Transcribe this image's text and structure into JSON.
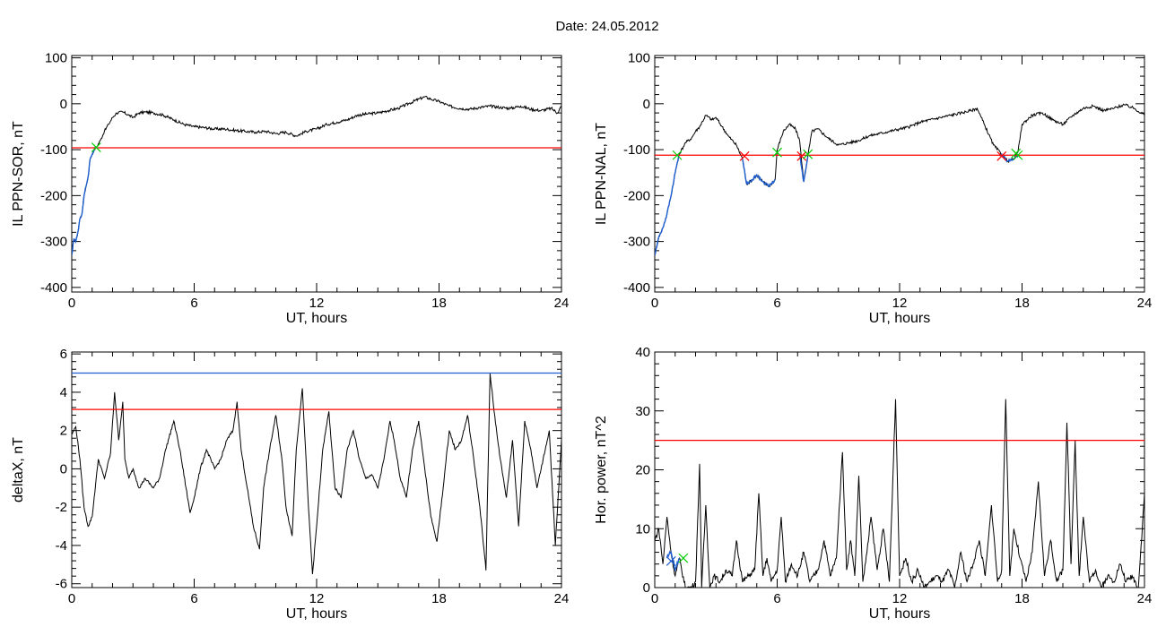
{
  "figure": {
    "title": "Date:  24.05.2012"
  },
  "chart_data": [
    {
      "type": "line",
      "xlabel": "UT, hours",
      "ylabel": "IL PPN-SOR, nT",
      "xlim": [
        0,
        24
      ],
      "ylim": [
        -410,
        105
      ],
      "xticks": [
        0,
        6,
        12,
        18,
        24
      ],
      "yticks": [
        -400,
        -300,
        -200,
        -100,
        0,
        100
      ],
      "grid": false,
      "series": [
        {
          "color": "#000000",
          "x": [
            0,
            0.1,
            0.2,
            0.3,
            0.4,
            0.5,
            0.6,
            0.7,
            0.8,
            0.9,
            1.0,
            1.1,
            1.2,
            1.4,
            1.6,
            1.8,
            2.0,
            2.2,
            2.5,
            2.8,
            3.0,
            3.3,
            3.6,
            4.0,
            4.5,
            5.0,
            5.5,
            6.0,
            6.5,
            7.0,
            7.5,
            8.0,
            8.5,
            9.0,
            9.5,
            10.0,
            10.5,
            11.0,
            11.5,
            12.0,
            12.5,
            13.0,
            13.5,
            14.0,
            14.5,
            15.0,
            15.5,
            16.0,
            16.5,
            17.0,
            17.3,
            17.6,
            18.0,
            18.5,
            19.0,
            19.5,
            20.0,
            20.5,
            21.0,
            21.5,
            22.0,
            22.5,
            23.0,
            23.5,
            23.8,
            24.0
          ],
          "y": [
            -330,
            -295,
            -300,
            -280,
            -250,
            -240,
            -200,
            -180,
            -160,
            -120,
            -110,
            -100,
            -95,
            -80,
            -60,
            -45,
            -30,
            -20,
            -18,
            -25,
            -30,
            -20,
            -18,
            -20,
            -25,
            -35,
            -45,
            -50,
            -52,
            -55,
            -55,
            -58,
            -60,
            -62,
            -60,
            -65,
            -62,
            -70,
            -60,
            -55,
            -45,
            -40,
            -35,
            -25,
            -22,
            -20,
            -15,
            -10,
            0,
            10,
            15,
            10,
            5,
            -5,
            -10,
            -12,
            -8,
            -5,
            -8,
            -10,
            -5,
            -12,
            -15,
            -10,
            -20,
            -5
          ]
        },
        {
          "color": "#1f5fd0",
          "x": [
            0,
            0.1,
            0.2,
            0.3,
            0.4,
            0.5,
            0.6,
            0.7,
            0.8,
            0.9,
            1.0,
            1.1,
            1.2
          ],
          "y": [
            -330,
            -295,
            -300,
            -280,
            -250,
            -240,
            -200,
            -180,
            -160,
            -120,
            -110,
            -100,
            -95
          ]
        }
      ],
      "hlines": [
        {
          "y": -96,
          "color": "#ff0000"
        }
      ],
      "markers": [
        {
          "x": 1.2,
          "y": -95,
          "color": "#00cc00",
          "symbol": "x"
        }
      ]
    },
    {
      "type": "line",
      "xlabel": "UT, hours",
      "ylabel": "IL PPN-NAL, nT",
      "xlim": [
        0,
        24
      ],
      "ylim": [
        -410,
        105
      ],
      "xticks": [
        0,
        6,
        12,
        18,
        24
      ],
      "yticks": [
        -400,
        -300,
        -200,
        -100,
        0,
        100
      ],
      "grid": false,
      "series": [
        {
          "color": "#000000",
          "x": [
            0,
            0.2,
            0.4,
            0.6,
            0.8,
            1.0,
            1.2,
            1.5,
            1.8,
            2.0,
            2.2,
            2.5,
            2.8,
            3.0,
            3.3,
            3.6,
            4.0,
            4.3,
            4.5,
            4.8,
            5.0,
            5.3,
            5.6,
            5.9,
            6.0,
            6.3,
            6.6,
            6.9,
            7.1,
            7.3,
            7.5,
            7.7,
            8.0,
            8.5,
            9.0,
            9.5,
            10.0,
            10.5,
            11.0,
            11.5,
            12.0,
            12.5,
            13.0,
            13.5,
            14.0,
            14.5,
            15.0,
            15.5,
            15.8,
            16.2,
            16.6,
            17.0,
            17.3,
            17.6,
            17.8,
            18.0,
            18.5,
            19.0,
            19.5,
            20.0,
            20.5,
            21.0,
            21.5,
            22.0,
            22.5,
            23.0,
            23.5,
            24.0
          ],
          "y": [
            -330,
            -290,
            -270,
            -240,
            -200,
            -150,
            -110,
            -85,
            -75,
            -60,
            -50,
            -25,
            -35,
            -30,
            -50,
            -70,
            -90,
            -120,
            -175,
            -165,
            -155,
            -170,
            -180,
            -165,
            -100,
            -60,
            -45,
            -55,
            -80,
            -170,
            -115,
            -60,
            -55,
            -75,
            -90,
            -85,
            -80,
            -70,
            -65,
            -60,
            -55,
            -50,
            -40,
            -35,
            -30,
            -25,
            -20,
            -15,
            -10,
            -50,
            -90,
            -110,
            -125,
            -120,
            -105,
            -45,
            -25,
            -20,
            -35,
            -45,
            -25,
            -10,
            -5,
            -15,
            -10,
            -2,
            -10,
            -25
          ]
        },
        {
          "color": "#1f5fd0",
          "x": [
            0,
            0.2,
            0.4,
            0.6,
            0.8,
            1.0,
            1.2
          ],
          "y": [
            -330,
            -290,
            -270,
            -240,
            -200,
            -150,
            -110
          ]
        },
        {
          "color": "#1f5fd0",
          "x": [
            4.3,
            4.5,
            4.8,
            5.0,
            5.3,
            5.6,
            5.9
          ],
          "y": [
            -120,
            -175,
            -165,
            -155,
            -170,
            -180,
            -165
          ]
        },
        {
          "color": "#1f5fd0",
          "x": [
            7.1,
            7.3,
            7.5
          ],
          "y": [
            -110,
            -170,
            -115
          ]
        },
        {
          "color": "#1f5fd0",
          "x": [
            16.9,
            17.0,
            17.3,
            17.6,
            17.8
          ],
          "y": [
            -112,
            -110,
            -125,
            -120,
            -112
          ]
        }
      ],
      "hlines": [
        {
          "y": -112,
          "color": "#ff0000"
        }
      ],
      "markers": [
        {
          "x": 1.1,
          "y": -112,
          "color": "#00cc00",
          "symbol": "x"
        },
        {
          "x": 4.4,
          "y": -114,
          "color": "#ff0000",
          "symbol": "x"
        },
        {
          "x": 6.0,
          "y": -106,
          "color": "#00cc00",
          "symbol": "x"
        },
        {
          "x": 7.2,
          "y": -114,
          "color": "#ff0000",
          "symbol": "x"
        },
        {
          "x": 7.5,
          "y": -110,
          "color": "#00cc00",
          "symbol": "x"
        },
        {
          "x": 17.0,
          "y": -114,
          "color": "#ff0000",
          "symbol": "x"
        },
        {
          "x": 17.7,
          "y": -108,
          "color": "#00cc00",
          "symbol": "x"
        },
        {
          "x": 17.8,
          "y": -112,
          "color": "#00cc00",
          "symbol": "x"
        }
      ]
    },
    {
      "type": "line",
      "xlabel": "UT, hours",
      "ylabel": "deltaX, nT",
      "xlim": [
        0,
        24
      ],
      "ylim": [
        -6.2,
        6.1
      ],
      "xticks": [
        0,
        6,
        12,
        18,
        24
      ],
      "yticks": [
        -6,
        -4,
        -2,
        0,
        2,
        4,
        6
      ],
      "grid": false,
      "series": [
        {
          "color": "#000000",
          "x": [
            0,
            0.2,
            0.4,
            0.6,
            0.8,
            1.0,
            1.3,
            1.6,
            1.9,
            2.1,
            2.3,
            2.5,
            2.6,
            2.8,
            3.0,
            3.3,
            3.6,
            4.0,
            4.3,
            4.6,
            5.0,
            5.3,
            5.6,
            5.8,
            6.0,
            6.3,
            6.6,
            7.0,
            7.3,
            7.6,
            7.9,
            8.1,
            8.3,
            8.6,
            8.9,
            9.2,
            9.4,
            9.7,
            10.0,
            10.3,
            10.5,
            10.8,
            11.0,
            11.3,
            11.6,
            11.8,
            12.0,
            12.3,
            12.6,
            12.9,
            13.2,
            13.5,
            13.8,
            14.1,
            14.4,
            14.7,
            15.0,
            15.3,
            15.6,
            15.8,
            16.1,
            16.4,
            16.7,
            17.0,
            17.3,
            17.6,
            17.9,
            18.2,
            18.5,
            18.8,
            19.1,
            19.4,
            19.7,
            20.0,
            20.3,
            20.5,
            20.7,
            21.0,
            21.3,
            21.6,
            21.9,
            22.2,
            22.5,
            22.8,
            23.1,
            23.4,
            23.7,
            24.0
          ],
          "y": [
            1.8,
            2.2,
            0.5,
            -2.0,
            -3.0,
            -2.5,
            0.5,
            -0.5,
            0.8,
            4.0,
            1.5,
            3.5,
            0.5,
            -0.5,
            0.0,
            -1.0,
            -0.5,
            -1.0,
            -0.5,
            1.0,
            2.5,
            1.0,
            -1.0,
            -2.3,
            -1.5,
            0.0,
            1.0,
            0.0,
            0.5,
            1.5,
            2.0,
            3.5,
            1.0,
            -1.0,
            -3.0,
            -4.2,
            -1.0,
            1.0,
            2.8,
            0.5,
            -2.0,
            -3.5,
            1.0,
            4.2,
            -2.0,
            -5.5,
            -3.0,
            1.0,
            3.0,
            -1.0,
            -1.5,
            1.0,
            2.0,
            0.5,
            -0.5,
            -0.3,
            -1.0,
            0.5,
            2.5,
            1.5,
            -0.5,
            -1.5,
            1.0,
            2.5,
            0.0,
            -2.5,
            -3.8,
            -1.0,
            2.0,
            1.0,
            1.5,
            2.8,
            0.5,
            -2.0,
            -5.3,
            5.0,
            3.0,
            0.5,
            -1.5,
            1.5,
            -3.0,
            2.5,
            1.0,
            -1.0,
            0.5,
            2.0,
            -4.0,
            1.5
          ]
        }
      ],
      "hlines": [
        {
          "y": 5.0,
          "color": "#1f5fd0"
        },
        {
          "y": 3.1,
          "color": "#ff0000"
        }
      ],
      "markers": []
    },
    {
      "type": "line",
      "xlabel": "UT, hours",
      "ylabel": "Hor. power, nT^2",
      "xlim": [
        0,
        24
      ],
      "ylim": [
        0,
        40
      ],
      "xticks": [
        0,
        6,
        12,
        18,
        24
      ],
      "yticks": [
        0,
        10,
        20,
        30,
        40
      ],
      "grid": false,
      "series": [
        {
          "color": "#000000",
          "x": [
            0,
            0.2,
            0.4,
            0.6,
            0.8,
            1.0,
            1.2,
            1.5,
            1.8,
            2.0,
            2.2,
            2.3,
            2.5,
            2.7,
            2.9,
            3.2,
            3.5,
            3.8,
            4.0,
            4.3,
            4.6,
            4.9,
            5.1,
            5.3,
            5.5,
            5.7,
            6.0,
            6.2,
            6.4,
            6.7,
            7.0,
            7.3,
            7.6,
            8.0,
            8.3,
            8.6,
            8.9,
            9.2,
            9.4,
            9.6,
            9.8,
            10.0,
            10.2,
            10.4,
            10.6,
            10.9,
            11.2,
            11.5,
            11.8,
            12.0,
            12.3,
            12.6,
            12.9,
            13.2,
            13.5,
            13.8,
            14.1,
            14.4,
            14.7,
            15.0,
            15.3,
            15.6,
            15.9,
            16.2,
            16.5,
            16.8,
            17.0,
            17.2,
            17.4,
            17.6,
            17.9,
            18.2,
            18.5,
            18.8,
            19.1,
            19.4,
            19.7,
            20.0,
            20.2,
            20.4,
            20.6,
            20.8,
            21.0,
            21.3,
            21.6,
            21.9,
            22.2,
            22.5,
            22.8,
            23.1,
            23.4,
            23.7,
            24.0
          ],
          "y": [
            8,
            10,
            4,
            12,
            6,
            2,
            5,
            0,
            0,
            1,
            21,
            0,
            14,
            0,
            2,
            1,
            3,
            2,
            8,
            1,
            2,
            3,
            16,
            2,
            5,
            1,
            3,
            12,
            1,
            4,
            2,
            6,
            1,
            3,
            8,
            2,
            5,
            23,
            3,
            8,
            2,
            19,
            1,
            6,
            12,
            3,
            10,
            1,
            32,
            2,
            5,
            1,
            3,
            0,
            1,
            2,
            1,
            3,
            0,
            6,
            1,
            4,
            8,
            2,
            14,
            1,
            3,
            32,
            2,
            10,
            5,
            1,
            6,
            18,
            2,
            8,
            1,
            3,
            28,
            4,
            25,
            2,
            12,
            1,
            3,
            0,
            2,
            1,
            4,
            1,
            2,
            0,
            16
          ]
        },
        {
          "color": "#1f5fd0",
          "x": [
            0.6,
            0.8,
            1.0,
            1.2
          ],
          "y": [
            5,
            6,
            3,
            5
          ]
        }
      ],
      "hlines": [
        {
          "y": 25,
          "color": "#ff0000"
        }
      ],
      "markers": [
        {
          "x": 0.8,
          "y": 4.5,
          "color": "#1f5fd0",
          "symbol": "x"
        },
        {
          "x": 1.4,
          "y": 5,
          "color": "#00cc00",
          "symbol": "x"
        }
      ]
    }
  ]
}
